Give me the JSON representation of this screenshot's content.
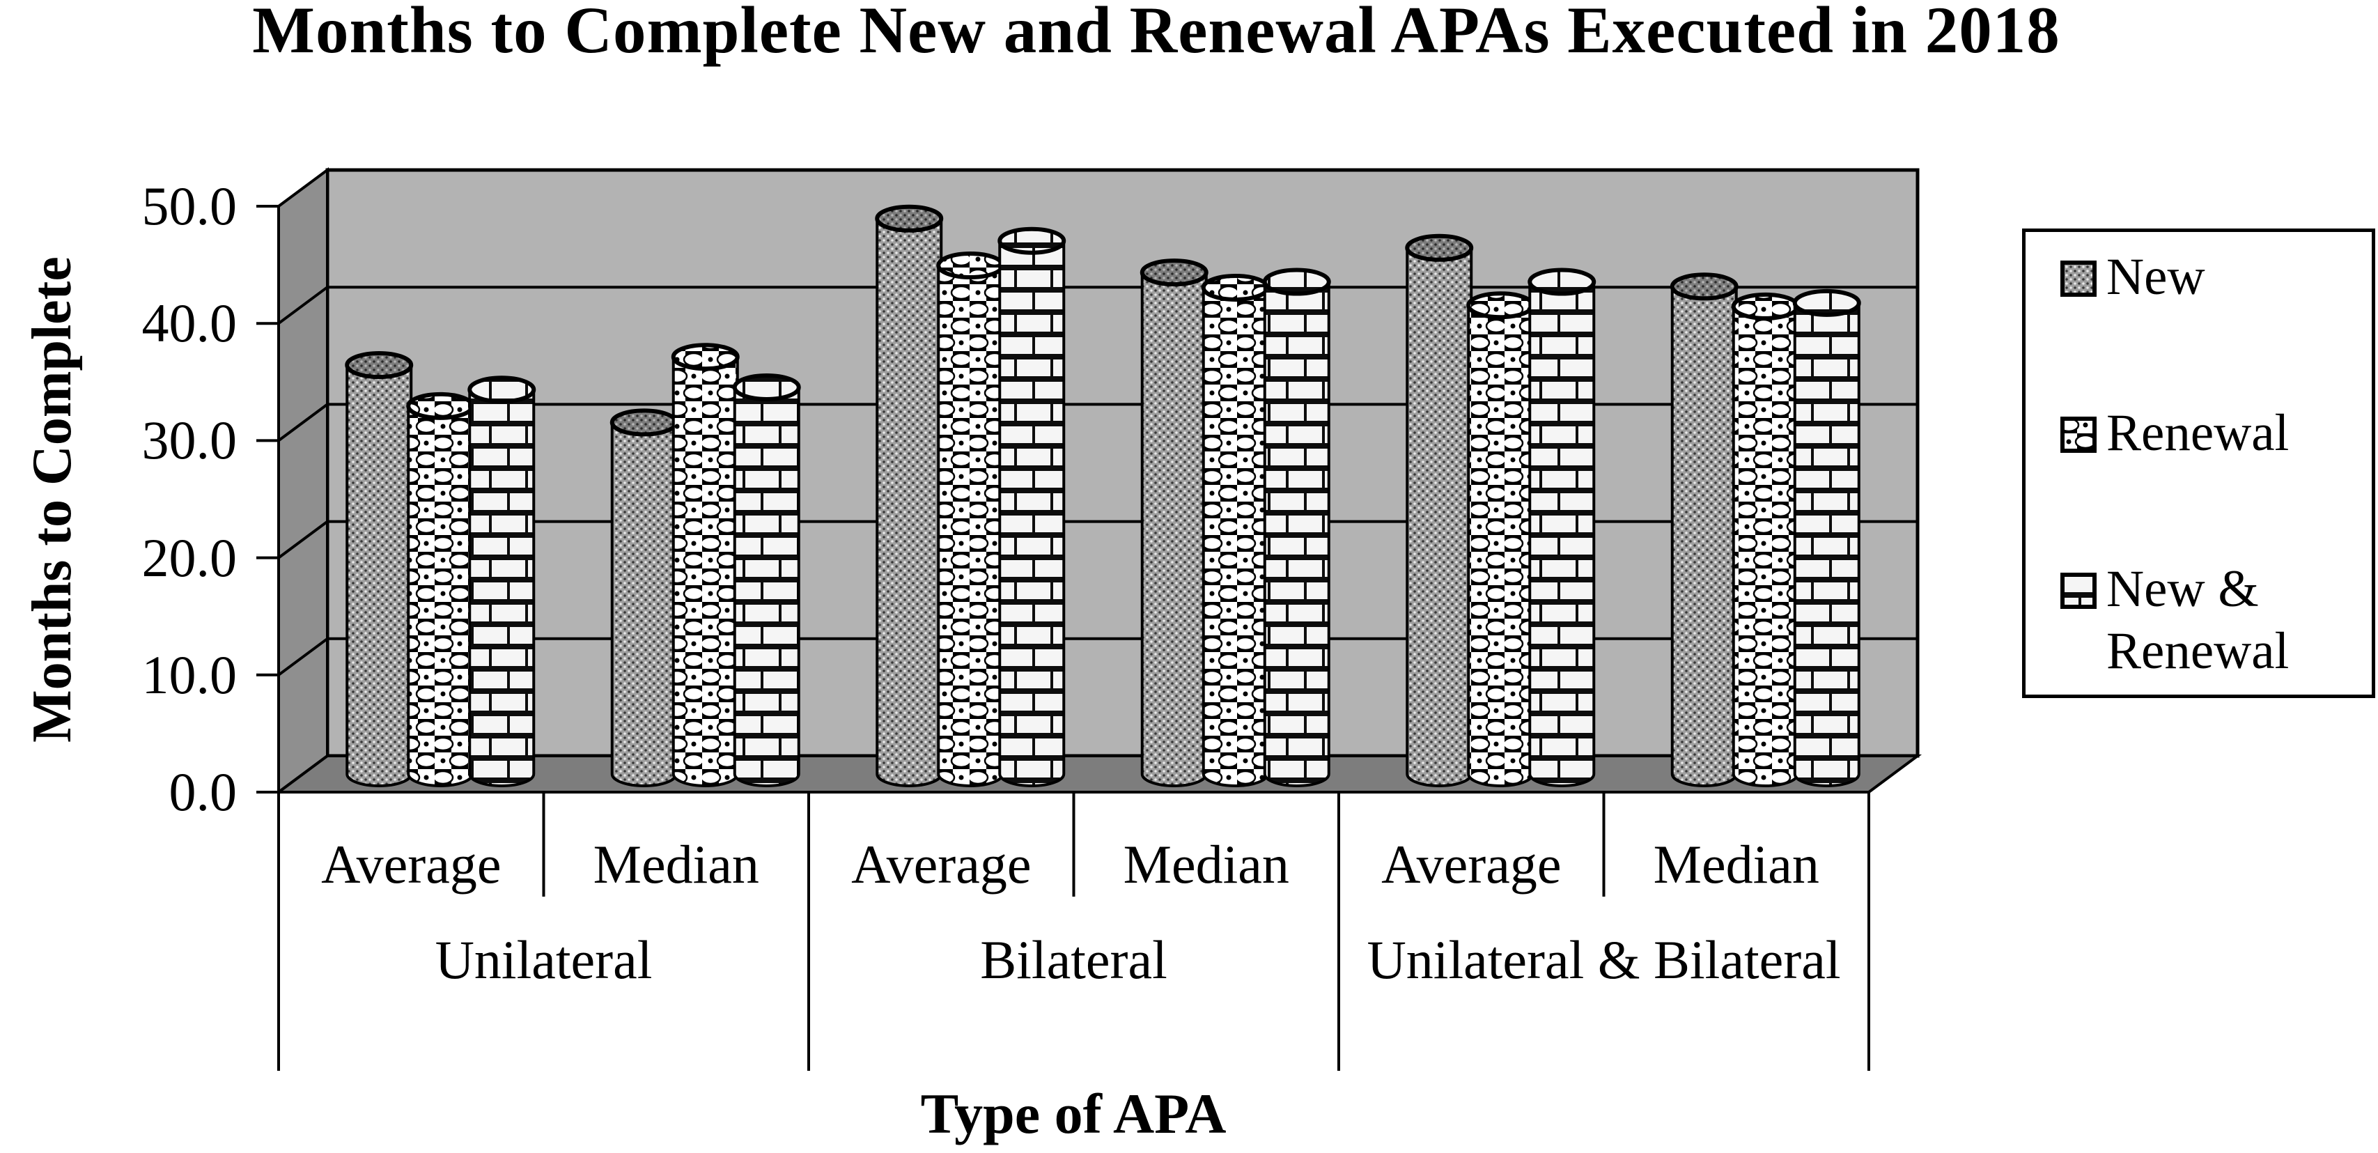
{
  "title": "Months to Complete New and Renewal APAs Executed in 2018",
  "y_axis": {
    "title": "Months to Complete",
    "tick_labels": [
      "0.0",
      "10.0",
      "20.0",
      "30.0",
      "40.0",
      "50.0"
    ],
    "min": 0,
    "max": 50,
    "step": 10
  },
  "x_axis": {
    "title": "Type of APA",
    "groups": [
      {
        "label": "Unilateral",
        "subcategories": [
          "Average",
          "Median"
        ]
      },
      {
        "label": "Bilateral",
        "subcategories": [
          "Average",
          "Median"
        ]
      },
      {
        "label": "Unilateral & Bilateral",
        "subcategories": [
          "Average",
          "Median"
        ]
      }
    ]
  },
  "legend": {
    "entries": [
      {
        "label": "New",
        "pattern": "dots"
      },
      {
        "label": "Renewal",
        "pattern": "checker"
      },
      {
        "label": "New & Renewal",
        "pattern": "brick"
      }
    ]
  },
  "colors": {
    "back_wall": "#b3b3b3",
    "side_wall": "#8f8f8f",
    "floor": "#7d7d7d",
    "outline": "#000000",
    "background": "#ffffff"
  },
  "chart_data": {
    "type": "bar",
    "style": "3d-cylinder",
    "title": "Months to Complete New and Renewal APAs Executed in 2018",
    "xlabel": "Type of APA",
    "ylabel": "Months to Complete",
    "ylim": [
      0,
      50
    ],
    "grid": true,
    "legend_position": "right",
    "categories": [
      "Unilateral Average",
      "Unilateral Median",
      "Bilateral Average",
      "Bilateral Median",
      "Unilateral & Bilateral Average",
      "Unilateral & Bilateral Median"
    ],
    "series": [
      {
        "name": "New",
        "values": [
          34.9,
          30.0,
          47.4,
          42.8,
          44.9,
          41.6
        ]
      },
      {
        "name": "Renewal",
        "values": [
          31.4,
          35.6,
          43.4,
          41.5,
          40.0,
          39.9
        ]
      },
      {
        "name": "New & Renewal",
        "values": [
          32.8,
          33.0,
          45.5,
          42.0,
          42.0,
          40.2
        ]
      }
    ]
  }
}
